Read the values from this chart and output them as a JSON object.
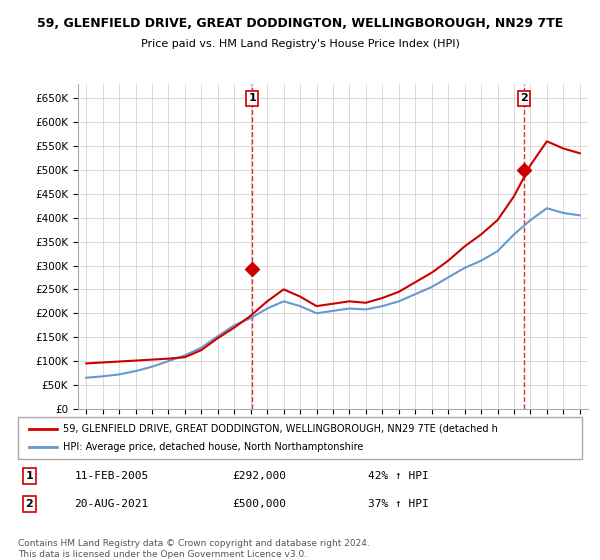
{
  "title_line1": "59, GLENFIELD DRIVE, GREAT DODDINGTON, WELLINGBOROUGH, NN29 7TE",
  "title_line2": "Price paid vs. HM Land Registry's House Price Index (HPI)",
  "ylabel_ticks": [
    "£0",
    "£50K",
    "£100K",
    "£150K",
    "£200K",
    "£250K",
    "£300K",
    "£350K",
    "£400K",
    "£450K",
    "£500K",
    "£550K",
    "£600K",
    "£650K"
  ],
  "ytick_values": [
    0,
    50000,
    100000,
    150000,
    200000,
    250000,
    300000,
    350000,
    400000,
    450000,
    500000,
    550000,
    600000,
    650000
  ],
  "ylim": [
    0,
    680000
  ],
  "hpi_color": "#6699cc",
  "price_color": "#cc0000",
  "marker1_date_idx": 10.2,
  "marker2_date_idx": 26.7,
  "sale1_date": "11-FEB-2005",
  "sale1_price": 292000,
  "sale1_hpi_pct": "42% ↑ HPI",
  "sale2_date": "20-AUG-2021",
  "sale2_price": 500000,
  "sale2_hpi_pct": "37% ↑ HPI",
  "legend_label1": "59, GLENFIELD DRIVE, GREAT DODDINGTON, WELLINGBOROUGH, NN29 7TE (detached h",
  "legend_label2": "HPI: Average price, detached house, North Northamptonshire",
  "footer1": "Contains HM Land Registry data © Crown copyright and database right 2024.",
  "footer2": "This data is licensed under the Open Government Licence v3.0.",
  "years": [
    1995,
    1996,
    1997,
    1998,
    1999,
    2000,
    2001,
    2002,
    2003,
    2004,
    2005,
    2006,
    2007,
    2008,
    2009,
    2010,
    2011,
    2012,
    2013,
    2014,
    2015,
    2016,
    2017,
    2018,
    2019,
    2020,
    2021,
    2022,
    2023,
    2024,
    2025
  ],
  "hpi_values": [
    65000,
    68000,
    72000,
    79000,
    88000,
    100000,
    112000,
    128000,
    152000,
    175000,
    190000,
    210000,
    225000,
    215000,
    200000,
    205000,
    210000,
    208000,
    215000,
    225000,
    240000,
    255000,
    275000,
    295000,
    310000,
    330000,
    365000,
    395000,
    420000,
    410000,
    405000
  ],
  "red_values": [
    95000,
    97000,
    99000,
    101000,
    103000,
    105000,
    108000,
    123000,
    148000,
    170000,
    195000,
    225000,
    250000,
    235000,
    215000,
    220000,
    225000,
    222000,
    232000,
    245000,
    265000,
    285000,
    310000,
    340000,
    365000,
    395000,
    445000,
    510000,
    560000,
    545000,
    535000
  ]
}
